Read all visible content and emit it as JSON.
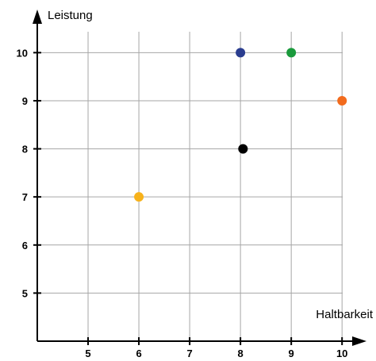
{
  "chart_data": {
    "type": "scatter",
    "xlabel": "Haltbarkeit",
    "ylabel": "Leistung",
    "xlim": [
      4,
      10.2
    ],
    "ylim": [
      4,
      10.6
    ],
    "x_ticks": [
      "5",
      "6",
      "7",
      "8",
      "9",
      "10"
    ],
    "y_ticks": [
      "5",
      "6",
      "7",
      "8",
      "9",
      "10"
    ],
    "grid": true,
    "legend": "none",
    "points": [
      {
        "x": 8.0,
        "y": 10.0,
        "color": "#2a3d8f"
      },
      {
        "x": 9.0,
        "y": 10.0,
        "color": "#1a9a3c"
      },
      {
        "x": 10.0,
        "y": 9.0,
        "color": "#f26b1d"
      },
      {
        "x": 8.05,
        "y": 8.0,
        "color": "#000000"
      },
      {
        "x": 6.0,
        "y": 7.0,
        "color": "#f7b21b"
      }
    ]
  }
}
